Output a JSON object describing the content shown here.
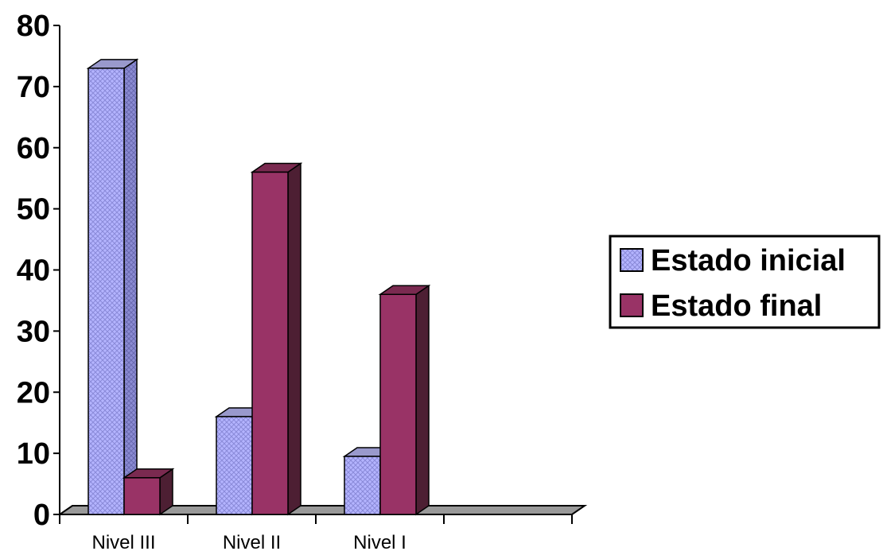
{
  "chart_data": {
    "type": "bar",
    "categories": [
      "Nivel  III",
      "Nivel II",
      "Nivel I",
      ""
    ],
    "series": [
      {
        "name": "Estado inicial",
        "values": [
          73,
          16,
          null,
          null
        ],
        "color": "#9999ff",
        "pattern": "crosshatch"
      },
      {
        "name": "Estado final",
        "values": [
          6,
          56,
          36,
          null
        ],
        "color": "#993366",
        "pattern": "solid"
      }
    ],
    "series_patch": {
      "0": {
        "values": [
          73,
          16,
          9.5,
          null
        ]
      }
    },
    "ylim": [
      0,
      80
    ],
    "yticks": [
      "0",
      "10",
      "20",
      "30",
      "40",
      "50",
      "60",
      "70",
      "80"
    ],
    "legend": {
      "position": "right",
      "items": [
        "Estado inicial",
        "Estado final"
      ]
    },
    "grid": false,
    "style": "3d-column"
  }
}
